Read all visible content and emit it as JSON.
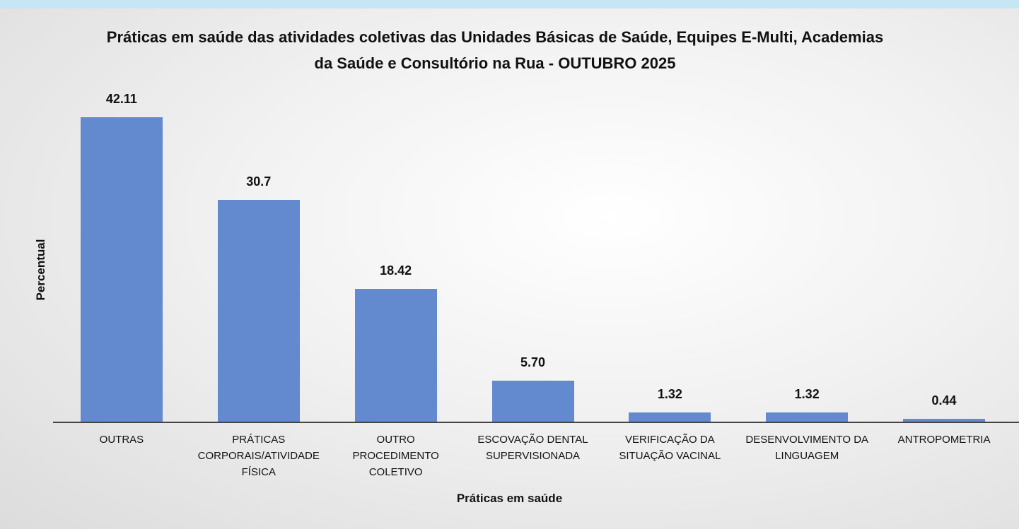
{
  "chart_data": {
    "type": "bar",
    "title": "Práticas em saúde das atividades coletivas das Unidades Básicas de Saúde, Equipes E-Multi, Academias da Saúde e Consultório na Rua - OUTUBRO 2025",
    "xlabel": "Práticas em saúde",
    "ylabel": "Percentual",
    "categories": [
      "OUTRAS",
      "PRÁTICAS CORPORAIS/ATIVIDADE FÍSICA",
      "OUTRO PROCEDIMENTO COLETIVO",
      "ESCOVAÇÃO DENTAL SUPERVISIONADA",
      "VERIFICAÇÃO DA SITUAÇÃO VACINAL",
      "DESENVOLVIMENTO DA LINGUAGEM",
      "ANTROPOMETRIA"
    ],
    "values": [
      42.11,
      30.7,
      18.42,
      5.7,
      1.32,
      1.32,
      0.44
    ],
    "value_labels": [
      "42.11",
      "30.7",
      "18.42",
      "5.70",
      "1.32",
      "1.32",
      "0.44"
    ],
    "color": "#6389cf",
    "ylim": [
      0,
      45
    ]
  }
}
